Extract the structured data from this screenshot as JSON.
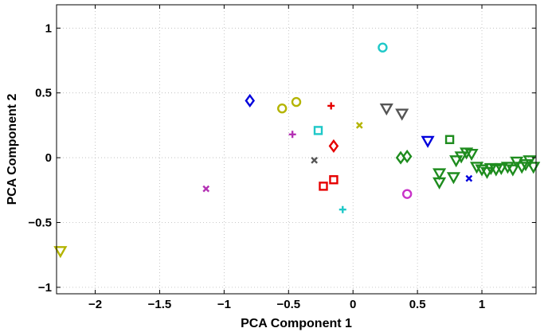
{
  "chart_data": {
    "type": "scatter",
    "xlabel": "PCA Component 1",
    "ylabel": "PCA Component 2",
    "xlim": [
      -2.3,
      1.42
    ],
    "ylim": [
      -1.05,
      1.18
    ],
    "grid": true,
    "xticks": [
      -2,
      -1.5,
      -1,
      -0.5,
      0,
      0.5,
      1
    ],
    "yticks": [
      -1,
      -0.5,
      0,
      0.5,
      1
    ],
    "xtick_labels": [
      "−2",
      "−1.5",
      "−1",
      "−0.5",
      "0",
      "0.5",
      "1"
    ],
    "ytick_labels": [
      "−1",
      "−0.5",
      "0",
      "0.5",
      "1"
    ],
    "points": [
      {
        "x": 0.23,
        "y": 0.85,
        "marker": "circle",
        "color": "#1ec8c8"
      },
      {
        "x": -0.55,
        "y": 0.38,
        "marker": "circle",
        "color": "#b4b400"
      },
      {
        "x": -0.44,
        "y": 0.43,
        "marker": "circle",
        "color": "#b4b400"
      },
      {
        "x": 0.42,
        "y": -0.28,
        "marker": "circle",
        "color": "#c832c8"
      },
      {
        "x": -0.8,
        "y": 0.44,
        "marker": "diamond",
        "color": "#0000dc"
      },
      {
        "x": -0.15,
        "y": 0.09,
        "marker": "diamond",
        "color": "#e60000"
      },
      {
        "x": 0.37,
        "y": 0.0,
        "marker": "diamond",
        "color": "#1e8c1e"
      },
      {
        "x": 0.42,
        "y": 0.01,
        "marker": "diamond",
        "color": "#1e8c1e"
      },
      {
        "x": -0.17,
        "y": 0.4,
        "marker": "plus",
        "color": "#e60000"
      },
      {
        "x": -0.47,
        "y": 0.18,
        "marker": "plus",
        "color": "#b432b4"
      },
      {
        "x": -0.08,
        "y": -0.4,
        "marker": "plus",
        "color": "#1ec8c8"
      },
      {
        "x": -1.14,
        "y": -0.24,
        "marker": "x",
        "color": "#b432b4"
      },
      {
        "x": -0.3,
        "y": -0.02,
        "marker": "x",
        "color": "#555555"
      },
      {
        "x": 0.05,
        "y": 0.25,
        "marker": "x",
        "color": "#b4b400"
      },
      {
        "x": 0.9,
        "y": -0.16,
        "marker": "x",
        "color": "#0000dc"
      },
      {
        "x": -0.27,
        "y": 0.21,
        "marker": "square",
        "color": "#1ec8c8"
      },
      {
        "x": -0.23,
        "y": -0.22,
        "marker": "square",
        "color": "#e60000"
      },
      {
        "x": -0.15,
        "y": -0.17,
        "marker": "square",
        "color": "#e60000"
      },
      {
        "x": 0.75,
        "y": 0.14,
        "marker": "square",
        "color": "#1e8c1e"
      },
      {
        "x": -2.27,
        "y": -0.72,
        "marker": "triangle-down",
        "color": "#b4b400"
      },
      {
        "x": 0.26,
        "y": 0.38,
        "marker": "triangle-down",
        "color": "#555555"
      },
      {
        "x": 0.38,
        "y": 0.34,
        "marker": "triangle-down",
        "color": "#555555"
      },
      {
        "x": 0.58,
        "y": 0.13,
        "marker": "triangle-down",
        "color": "#0000dc"
      },
      {
        "x": 0.67,
        "y": -0.12,
        "marker": "triangle-down",
        "color": "#1e8c1e"
      },
      {
        "x": 0.67,
        "y": -0.19,
        "marker": "triangle-down",
        "color": "#1e8c1e"
      },
      {
        "x": 0.78,
        "y": -0.15,
        "marker": "triangle-down",
        "color": "#1e8c1e"
      },
      {
        "x": 0.8,
        "y": -0.02,
        "marker": "triangle-down",
        "color": "#1e8c1e"
      },
      {
        "x": 0.84,
        "y": 0.01,
        "marker": "triangle-down",
        "color": "#1e8c1e"
      },
      {
        "x": 0.88,
        "y": 0.04,
        "marker": "triangle-down",
        "color": "#1e8c1e"
      },
      {
        "x": 0.92,
        "y": 0.03,
        "marker": "triangle-down",
        "color": "#1e8c1e"
      },
      {
        "x": 0.96,
        "y": -0.07,
        "marker": "triangle-down",
        "color": "#1e8c1e"
      },
      {
        "x": 1.0,
        "y": -0.09,
        "marker": "triangle-down",
        "color": "#1e8c1e"
      },
      {
        "x": 1.04,
        "y": -0.11,
        "marker": "triangle-down",
        "color": "#1e8c1e"
      },
      {
        "x": 1.07,
        "y": -0.08,
        "marker": "triangle-down",
        "color": "#1e8c1e"
      },
      {
        "x": 1.11,
        "y": -0.09,
        "marker": "triangle-down",
        "color": "#1e8c1e"
      },
      {
        "x": 1.15,
        "y": -0.08,
        "marker": "triangle-down",
        "color": "#1e8c1e"
      },
      {
        "x": 1.2,
        "y": -0.07,
        "marker": "triangle-down",
        "color": "#1e8c1e"
      },
      {
        "x": 1.24,
        "y": -0.09,
        "marker": "triangle-down",
        "color": "#1e8c1e"
      },
      {
        "x": 1.27,
        "y": -0.03,
        "marker": "triangle-down",
        "color": "#1e8c1e"
      },
      {
        "x": 1.31,
        "y": -0.07,
        "marker": "triangle-down",
        "color": "#1e8c1e"
      },
      {
        "x": 1.34,
        "y": -0.05,
        "marker": "triangle-down",
        "color": "#1e8c1e"
      },
      {
        "x": 1.37,
        "y": -0.02,
        "marker": "triangle-down",
        "color": "#1e8c1e"
      },
      {
        "x": 1.4,
        "y": -0.07,
        "marker": "triangle-down",
        "color": "#1e8c1e"
      }
    ]
  }
}
